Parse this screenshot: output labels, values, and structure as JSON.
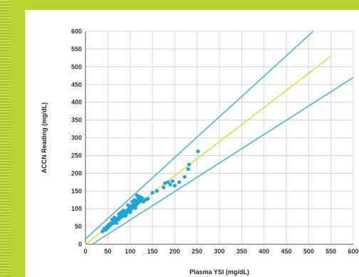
{
  "chart_data": {
    "type": "scatter",
    "title": "",
    "xlabel": "Plasma YSI (mg/dL)",
    "ylabel": "ACCN Reading (mg/dL)",
    "xlim": [
      0,
      600
    ],
    "ylim": [
      0,
      600
    ],
    "xticks": [
      0,
      50,
      100,
      150,
      200,
      250,
      300,
      350,
      400,
      450,
      500,
      550,
      600
    ],
    "yticks": [
      0,
      50,
      100,
      150,
      200,
      250,
      300,
      350,
      400,
      450,
      500,
      550,
      600
    ],
    "grid": true,
    "colors": {
      "points": "#1fa6d4",
      "bounds": "#4cb6d8",
      "identity": "#d8e04a",
      "grid": "#cccccc",
      "axis": "#555555"
    },
    "reference_lines": [
      {
        "role": "upper-bound",
        "points": [
          [
            0,
            15
          ],
          [
            510,
            600
          ]
        ]
      },
      {
        "role": "identity",
        "points": [
          [
            0,
            0
          ],
          [
            550,
            530
          ]
        ]
      },
      {
        "role": "lower-bound",
        "points": [
          [
            15,
            0
          ],
          [
            600,
            470
          ]
        ]
      }
    ],
    "points": [
      [
        38,
        36
      ],
      [
        42,
        44
      ],
      [
        45,
        40
      ],
      [
        48,
        50
      ],
      [
        50,
        46
      ],
      [
        52,
        55
      ],
      [
        55,
        52
      ],
      [
        57,
        60
      ],
      [
        60,
        58
      ],
      [
        62,
        63
      ],
      [
        64,
        60
      ],
      [
        66,
        68
      ],
      [
        68,
        65
      ],
      [
        70,
        72
      ],
      [
        72,
        70
      ],
      [
        74,
        75
      ],
      [
        75,
        70
      ],
      [
        77,
        80
      ],
      [
        79,
        76
      ],
      [
        80,
        82
      ],
      [
        82,
        78
      ],
      [
        84,
        86
      ],
      [
        85,
        80
      ],
      [
        87,
        90
      ],
      [
        89,
        86
      ],
      [
        90,
        92
      ],
      [
        92,
        88
      ],
      [
        94,
        96
      ],
      [
        95,
        92
      ],
      [
        97,
        100
      ],
      [
        98,
        95
      ],
      [
        100,
        104
      ],
      [
        101,
        98
      ],
      [
        103,
        108
      ],
      [
        104,
        100
      ],
      [
        106,
        110
      ],
      [
        107,
        104
      ],
      [
        109,
        113
      ],
      [
        110,
        108
      ],
      [
        112,
        116
      ],
      [
        113,
        110
      ],
      [
        115,
        120
      ],
      [
        116,
        114
      ],
      [
        118,
        124
      ],
      [
        119,
        118
      ],
      [
        121,
        128
      ],
      [
        122,
        120
      ],
      [
        124,
        132
      ],
      [
        125,
        125
      ],
      [
        127,
        130
      ],
      [
        115,
        138
      ],
      [
        120,
        135
      ],
      [
        110,
        125
      ],
      [
        130,
        120
      ],
      [
        135,
        126
      ],
      [
        140,
        128
      ],
      [
        150,
        145
      ],
      [
        160,
        150
      ],
      [
        175,
        160
      ],
      [
        178,
        172
      ],
      [
        185,
        175
      ],
      [
        190,
        168
      ],
      [
        195,
        178
      ],
      [
        200,
        165
      ],
      [
        210,
        175
      ],
      [
        222,
        190
      ],
      [
        230,
        212
      ],
      [
        232,
        225
      ],
      [
        252,
        262
      ],
      [
        60,
        70
      ],
      [
        70,
        60
      ],
      [
        80,
        90
      ],
      [
        90,
        80
      ],
      [
        100,
        90
      ],
      [
        105,
        120
      ],
      [
        112,
        102
      ],
      [
        118,
        130
      ],
      [
        95,
        110
      ],
      [
        85,
        95
      ],
      [
        75,
        85
      ],
      [
        65,
        75
      ]
    ]
  }
}
